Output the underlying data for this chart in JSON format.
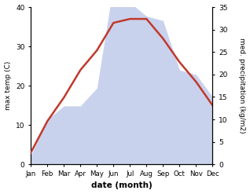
{
  "months": [
    "Jan",
    "Feb",
    "Mar",
    "Apr",
    "May",
    "Jun",
    "Jul",
    "Aug",
    "Sep",
    "Oct",
    "Nov",
    "Dec"
  ],
  "temperature": [
    3,
    11,
    17,
    24,
    29,
    36,
    37,
    37,
    32,
    26,
    21,
    15
  ],
  "precipitation": [
    2,
    10,
    13,
    13,
    17,
    40,
    36,
    33,
    32,
    21,
    20,
    15
  ],
  "temp_color": "#c0392b",
  "precip_fill_color": "#b8c4e8",
  "temp_ylim": [
    0,
    40
  ],
  "precip_ylim": [
    0,
    35
  ],
  "temp_yticks": [
    0,
    10,
    20,
    30,
    40
  ],
  "precip_yticks": [
    0,
    5,
    10,
    15,
    20,
    25,
    30,
    35
  ],
  "xlabel": "date (month)",
  "ylabel_left": "max temp (C)",
  "ylabel_right": "med. precipitation (kg/m2)"
}
